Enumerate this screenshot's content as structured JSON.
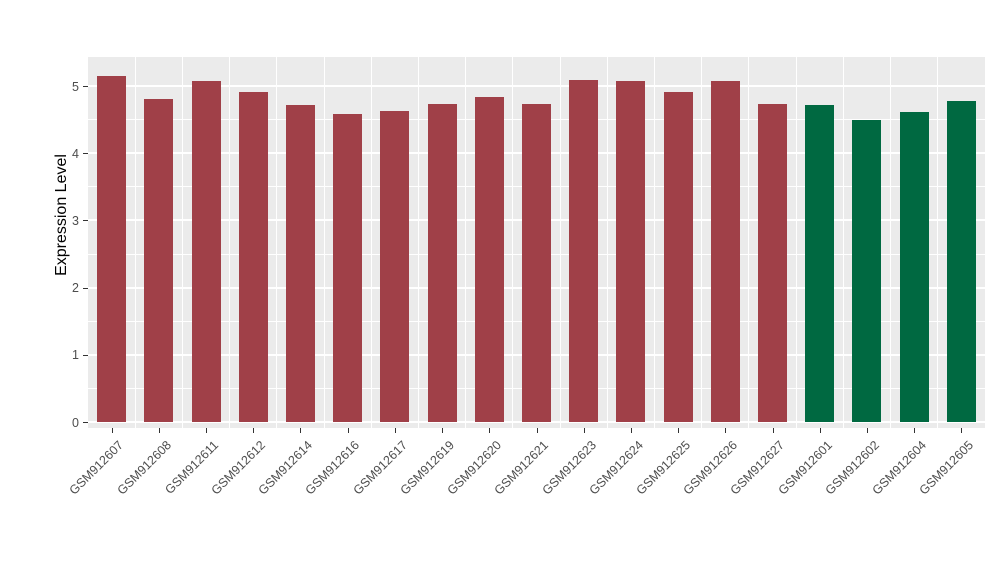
{
  "chart_data": {
    "type": "bar",
    "title": "",
    "xlabel": "",
    "ylabel": "Expression Level",
    "ylim": [
      0,
      5.43
    ],
    "yticks": [
      0,
      1,
      2,
      3,
      4,
      5
    ],
    "grid": "on",
    "legend_position": "none",
    "categories": [
      "GSM912607",
      "GSM912608",
      "GSM912611",
      "GSM912612",
      "GSM912614",
      "GSM912616",
      "GSM912617",
      "GSM912619",
      "GSM912620",
      "GSM912621",
      "GSM912623",
      "GSM912624",
      "GSM912625",
      "GSM912626",
      "GSM912627",
      "GSM912601",
      "GSM912602",
      "GSM912604",
      "GSM912605"
    ],
    "values": [
      5.15,
      4.8,
      5.07,
      4.91,
      4.72,
      4.58,
      4.63,
      4.73,
      4.83,
      4.73,
      5.09,
      5.07,
      4.91,
      5.07,
      4.73,
      4.72,
      4.5,
      4.62,
      4.77
    ],
    "bar_groups": [
      "red",
      "red",
      "red",
      "red",
      "red",
      "red",
      "red",
      "red",
      "red",
      "red",
      "red",
      "red",
      "red",
      "red",
      "red",
      "green",
      "green",
      "green",
      "green"
    ],
    "palette": {
      "red": "#A04048",
      "green": "#006941"
    },
    "panel_bg": "#EBEBEB",
    "grid_color": "#FFFFFF"
  }
}
